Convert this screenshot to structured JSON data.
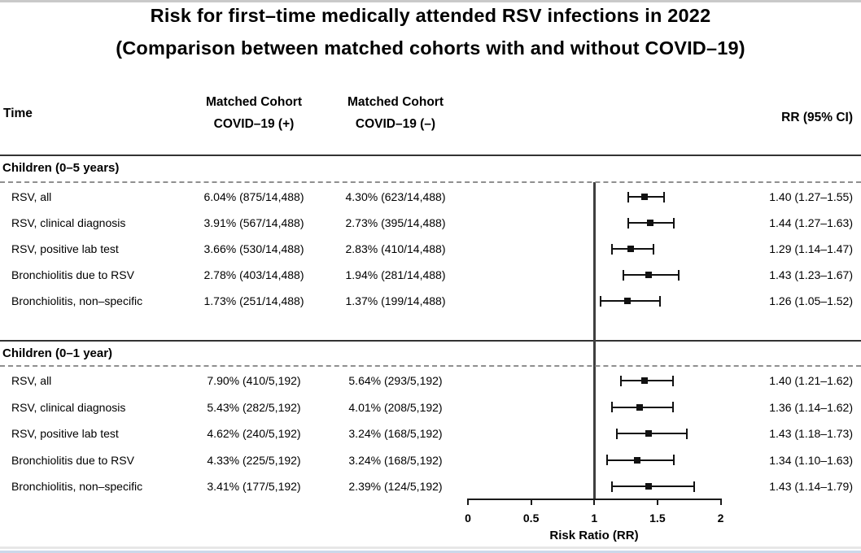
{
  "chart_data": {
    "type": "forest",
    "title": "Risk for first–time medically attended RSV infections in 2022",
    "subtitle": "(Comparison between matched cohorts with and without COVID–19)",
    "xlabel": "Risk Ratio (RR)",
    "xlim": [
      0,
      2
    ],
    "x_ticks": [
      "0",
      "0.5",
      "1",
      "1.5",
      "2"
    ],
    "x_tick_values": [
      0,
      0.5,
      1,
      1.5,
      2
    ],
    "ref_line": 1,
    "grid": "off",
    "legend": "none",
    "columns": {
      "time": "Time",
      "cohort_pos": [
        "Matched Cohort",
        "COVID–19 (+)"
      ],
      "cohort_neg": [
        "Matched Cohort",
        "COVID–19 (–)"
      ],
      "rr": "RR (95% CI)"
    },
    "sections": [
      {
        "header": "Children (0–5 years)",
        "rows": [
          {
            "label": "RSV, all",
            "cohort_covid_pos": "6.04% (875/14,488)",
            "cohort_covid_neg": "4.30% (623/14,488)",
            "rr": 1.4,
            "ci_low": 1.27,
            "ci_high": 1.55,
            "rr_text": "1.40 (1.27–1.55)"
          },
          {
            "label": "RSV, clinical diagnosis",
            "cohort_covid_pos": "3.91% (567/14,488)",
            "cohort_covid_neg": "2.73% (395/14,488)",
            "rr": 1.44,
            "ci_low": 1.27,
            "ci_high": 1.63,
            "rr_text": "1.44 (1.27–1.63)"
          },
          {
            "label": "RSV, positive lab test",
            "cohort_covid_pos": "3.66% (530/14,488)",
            "cohort_covid_neg": "2.83% (410/14,488)",
            "rr": 1.29,
            "ci_low": 1.14,
            "ci_high": 1.47,
            "rr_text": "1.29 (1.14–1.47)"
          },
          {
            "label": "Bronchiolitis due to RSV",
            "cohort_covid_pos": "2.78% (403/14,488)",
            "cohort_covid_neg": "1.94% (281/14,488)",
            "rr": 1.43,
            "ci_low": 1.23,
            "ci_high": 1.67,
            "rr_text": "1.43 (1.23–1.67)"
          },
          {
            "label": "Bronchiolitis, non–specific",
            "cohort_covid_pos": "1.73% (251/14,488)",
            "cohort_covid_neg": "1.37% (199/14,488)",
            "rr": 1.26,
            "ci_low": 1.05,
            "ci_high": 1.52,
            "rr_text": "1.26 (1.05–1.52)"
          }
        ]
      },
      {
        "header": "Children (0–1 year)",
        "rows": [
          {
            "label": "RSV, all",
            "cohort_covid_pos": "7.90% (410/5,192)",
            "cohort_covid_neg": "5.64% (293/5,192)",
            "rr": 1.4,
            "ci_low": 1.21,
            "ci_high": 1.62,
            "rr_text": "1.40 (1.21–1.62)"
          },
          {
            "label": "RSV, clinical diagnosis",
            "cohort_covid_pos": "5.43% (282/5,192)",
            "cohort_covid_neg": "4.01% (208/5,192)",
            "rr": 1.36,
            "ci_low": 1.14,
            "ci_high": 1.62,
            "rr_text": "1.36 (1.14–1.62)"
          },
          {
            "label": "RSV, positive lab test",
            "cohort_covid_pos": "4.62% (240/5,192)",
            "cohort_covid_neg": "3.24% (168/5,192)",
            "rr": 1.43,
            "ci_low": 1.18,
            "ci_high": 1.73,
            "rr_text": "1.43 (1.18–1.73)"
          },
          {
            "label": "Bronchiolitis due to RSV",
            "cohort_covid_pos": "4.33% (225/5,192)",
            "cohort_covid_neg": "3.24% (168/5,192)",
            "rr": 1.34,
            "ci_low": 1.1,
            "ci_high": 1.63,
            "rr_text": "1.34 (1.10–1.63)"
          },
          {
            "label": "Bronchiolitis, non–specific",
            "cohort_covid_pos": "3.41% (177/5,192)",
            "cohort_covid_neg": "2.39% (124/5,192)",
            "rr": 1.43,
            "ci_low": 1.14,
            "ci_high": 1.79,
            "rr_text": "1.43 (1.14–1.79)"
          }
        ]
      }
    ],
    "colors": {
      "text": "#000000",
      "rule": "#333333",
      "dashed_rule": "#8f8f8f",
      "reference_line": "#3f3f3f",
      "marker": "#111111",
      "bottom_edge": "#ccd8ea"
    }
  }
}
